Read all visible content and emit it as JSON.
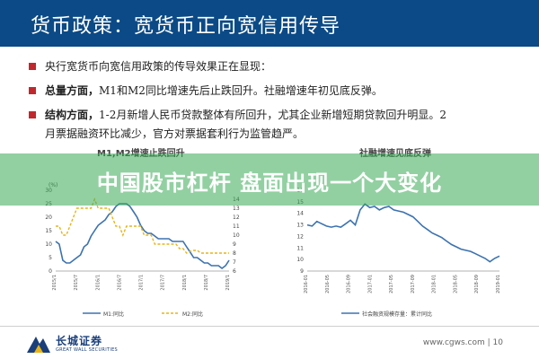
{
  "header": {
    "title": "货币政策：宽货币正向宽信用传导"
  },
  "bullets": [
    {
      "bold": "",
      "text": "央行宽货币向宽信用政策的传导效果正在显现：",
      "cont": ""
    },
    {
      "bold": "总量方面，",
      "text": "M1和M2同比增速先后止跌回升。社融增速年初见底反弹。",
      "cont": ""
    },
    {
      "bold": "结构方面，",
      "text": "1-2月新增人民币贷款整体有所回升，尤其企业新增短期贷款回升明显。2",
      "cont": "月票据融资环比减少，官方对票据套利行为监管趋严。"
    }
  ],
  "banner": {
    "text": "中国股市杠杆 盘面出现一个大变化"
  },
  "colors": {
    "header_bg": "#0b4a86",
    "bullet": "#c0282d",
    "m1": "#3b72b0",
    "m2": "#e8b418",
    "social": "#3b72b0"
  },
  "chart_data": [
    {
      "type": "line",
      "title": "M1,M2增速止跌回升",
      "unit_label": "(%)",
      "ylim_left": [
        0,
        30
      ],
      "yticks_left": [
        "0",
        "5",
        "10",
        "15",
        "20",
        "25",
        "30"
      ],
      "ylim_right": [
        6,
        15
      ],
      "yticks_right": [
        "6",
        "7",
        "8",
        "9",
        "10",
        "11",
        "12",
        "13",
        "14"
      ],
      "xticks": [
        "2015/1",
        "2015/7",
        "2016/1",
        "2016/7",
        "2017/1",
        "2017/7",
        "2018/1",
        "2018/7",
        "2019/1"
      ],
      "series": [
        {
          "name": "M1:同比",
          "axis": "left",
          "style": "solid",
          "values": [
            11,
            10,
            4,
            3,
            3,
            4,
            5,
            6,
            9,
            10,
            13,
            15,
            17,
            18,
            19,
            21,
            22,
            24,
            25,
            25,
            25,
            24,
            22,
            20,
            17,
            15,
            14,
            14,
            13,
            12,
            12,
            12,
            12,
            11,
            11,
            11,
            11,
            9,
            7,
            5,
            5,
            4,
            3,
            3,
            2,
            2,
            2,
            1,
            2,
            4
          ]
        },
        {
          "name": "M2:同比",
          "axis": "right",
          "style": "dashed",
          "values": [
            11,
            11,
            10,
            10,
            11,
            12,
            13,
            13,
            13,
            13,
            13,
            14,
            13,
            13,
            13,
            13,
            12,
            11,
            11,
            10,
            11,
            11,
            11,
            11,
            11,
            10,
            10,
            10,
            9,
            9,
            9,
            9,
            9,
            9,
            9,
            8.5,
            8.5,
            8,
            8.2,
            8.3,
            8.3,
            8,
            8,
            8,
            8,
            8,
            8,
            8,
            8,
            8
          ]
        }
      ]
    },
    {
      "type": "line",
      "title": "社融增速见底反弹",
      "ylim": [
        9,
        16
      ],
      "yticks": [
        "9",
        "10",
        "11",
        "12",
        "13",
        "14",
        "15",
        "16"
      ],
      "xticks": [
        "2016-01",
        "2016-05",
        "2016-09",
        "2017-01",
        "2017-05",
        "2017-09",
        "2018-01",
        "2018-05",
        "2018-09",
        "2019-01"
      ],
      "series": [
        {
          "name": "社会融资规模存量：累计同比",
          "style": "solid",
          "values": [
            13,
            12.9,
            13.3,
            13.1,
            12.9,
            12.8,
            12.9,
            12.8,
            13.1,
            13.4,
            13.0,
            14.3,
            14.8,
            14.5,
            14.6,
            14.3,
            14.5,
            14.6,
            14.3,
            14.2,
            14.1,
            13.9,
            13.7,
            13.3,
            12.9,
            12.6,
            12.3,
            12.1,
            11.9,
            11.6,
            11.3,
            11.1,
            10.9,
            10.8,
            10.7,
            10.5,
            10.3,
            10.1,
            9.8,
            10.1,
            10.3
          ]
        }
      ]
    }
  ],
  "footer": {
    "company_cn": "长城证券",
    "company_en": "GREAT WALL SECURITIES",
    "url": "www.cgws.com",
    "page": "10"
  }
}
